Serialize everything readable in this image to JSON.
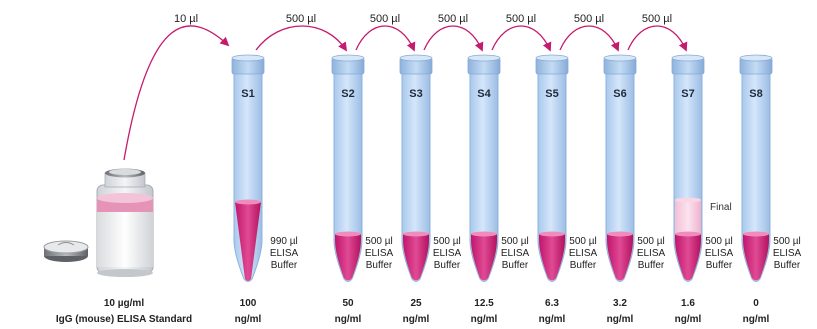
{
  "colors": {
    "arrow": "#c61a6e",
    "tube_fill": "#c5dcf6",
    "tube_stroke": "#8fb3dc",
    "liquid": "#d2207a",
    "liquid_light": "#f2c6da"
  },
  "transfers": [
    {
      "label": "10 µl"
    },
    {
      "label": "500 µl"
    },
    {
      "label": "500 µl"
    },
    {
      "label": "500 µl"
    },
    {
      "label": "500 µl"
    },
    {
      "label": "500 µl"
    },
    {
      "label": "500 µl"
    }
  ],
  "vial": {
    "concentration": "10 µg/ml",
    "name": "IgG (mouse) ELISA Standard"
  },
  "tubes": [
    {
      "id": "S1",
      "volume": "990 µl",
      "diluent_1": "ELISA",
      "diluent_2": "Buffer",
      "conc_value": "100",
      "conc_unit": "ng/ml"
    },
    {
      "id": "S2",
      "volume": "500 µl",
      "diluent_1": "ELISA",
      "diluent_2": "Buffer",
      "conc_value": "50",
      "conc_unit": "ng/ml"
    },
    {
      "id": "S3",
      "volume": "500 µl",
      "diluent_1": "ELISA",
      "diluent_2": "Buffer",
      "conc_value": "25",
      "conc_unit": "ng/ml"
    },
    {
      "id": "S4",
      "volume": "500 µl",
      "diluent_1": "ELISA",
      "diluent_2": "Buffer",
      "conc_value": "12.5",
      "conc_unit": "ng/ml"
    },
    {
      "id": "S5",
      "volume": "500 µl",
      "diluent_1": "ELISA",
      "diluent_2": "Buffer",
      "conc_value": "6.3",
      "conc_unit": "ng/ml"
    },
    {
      "id": "S6",
      "volume": "500 µl",
      "diluent_1": "ELISA",
      "diluent_2": "Buffer",
      "conc_value": "3.2",
      "conc_unit": "ng/ml"
    },
    {
      "id": "S7",
      "volume": "500 µl",
      "diluent_1": "ELISA",
      "diluent_2": "Buffer",
      "conc_value": "1.6",
      "conc_unit": "ng/ml",
      "note": "Final"
    },
    {
      "id": "S8",
      "volume": "500 µl",
      "diluent_1": "ELISA",
      "diluent_2": "Buffer",
      "conc_value": "0",
      "conc_unit": "ng/ml"
    }
  ]
}
